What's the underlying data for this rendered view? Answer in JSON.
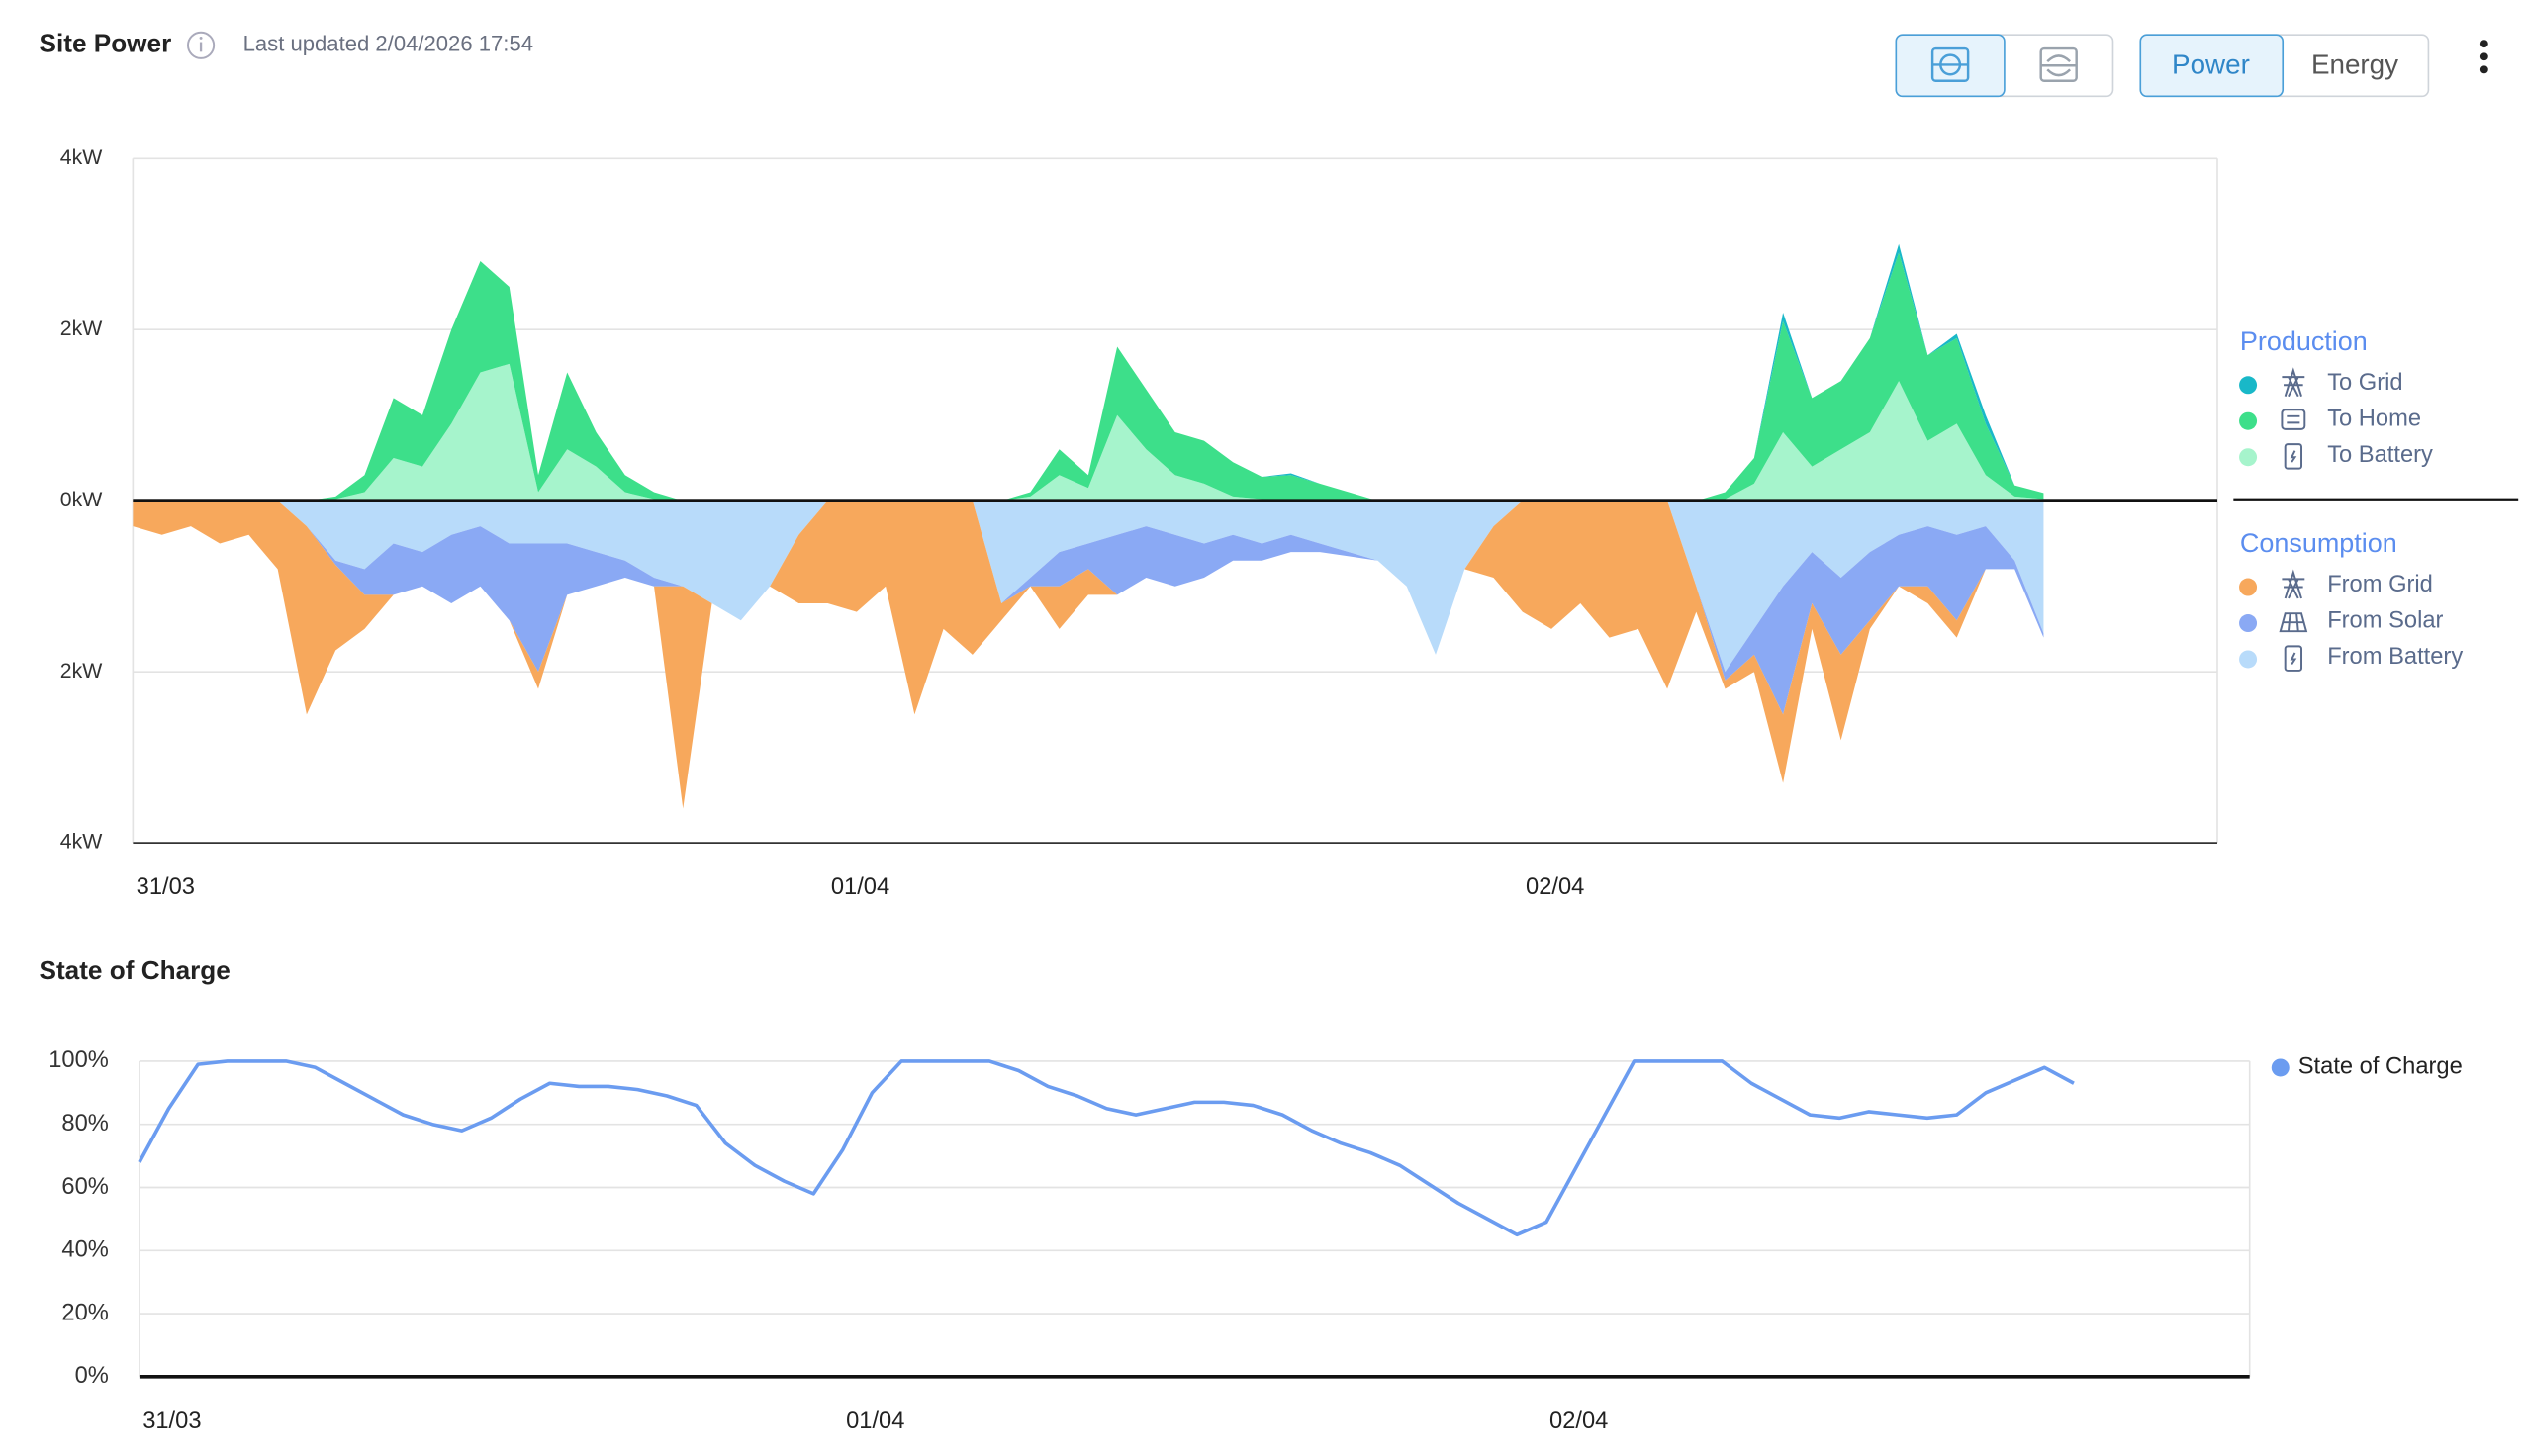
{
  "header": {
    "title": "Site Power",
    "last_updated": "Last updated 2/04/2026 17:54",
    "buttons": [
      "Power",
      "Energy"
    ]
  },
  "chart_data": [
    {
      "type": "area",
      "stacked": true,
      "categories": [
        "31/03",
        null,
        null,
        null,
        null,
        null,
        null,
        null,
        null,
        null,
        null,
        null,
        null,
        null,
        null,
        null,
        null,
        null,
        null,
        null,
        null,
        null,
        null,
        null,
        "01/04",
        null,
        null,
        null,
        null,
        null,
        null,
        null,
        null,
        null,
        null,
        null,
        null,
        null,
        null,
        null,
        null,
        null,
        null,
        null,
        null,
        null,
        null,
        null,
        "02/04",
        null,
        null,
        null,
        null,
        null,
        null,
        null,
        null,
        null,
        null,
        null,
        null,
        null,
        null,
        null,
        null,
        null,
        null,
        null,
        null,
        null,
        null,
        null
      ],
      "ylim": [
        -4,
        4
      ],
      "yticks": [
        {
          "value": 4,
          "label": "4kW"
        },
        {
          "value": 2,
          "label": "2kW"
        },
        {
          "value": 0,
          "label": "0kW"
        },
        {
          "value": -2,
          "label": "2kW"
        },
        {
          "value": -4,
          "label": "4kW"
        }
      ],
      "grid": true,
      "legend_position": "right",
      "legend_groups": [
        "Production",
        "Consumption"
      ],
      "series": [
        {
          "name": "To Grid",
          "color": "#19b8c8",
          "values": [
            0,
            0,
            0,
            0,
            0,
            0,
            0,
            0,
            0,
            0,
            0,
            0,
            0,
            0,
            0,
            0,
            0,
            0,
            0,
            0,
            0,
            0,
            0,
            0,
            0,
            0,
            0,
            0,
            0,
            0,
            0,
            0,
            0,
            0,
            0,
            0,
            0,
            0,
            0,
            0,
            0.02,
            0,
            0,
            0,
            0,
            0,
            0,
            0,
            0,
            0,
            0,
            0,
            0,
            0,
            0,
            0,
            0,
            0.1,
            0,
            0,
            0,
            0.1,
            0,
            0.05,
            0.1,
            0,
            0,
            null,
            null,
            null,
            null,
            null
          ]
        },
        {
          "name": "To Home",
          "color": "#3ddf8a",
          "values": [
            0,
            0,
            0,
            0,
            0,
            0,
            0,
            0.03,
            0.2,
            0.7,
            0.6,
            1.1,
            1.3,
            0.9,
            0.2,
            0.9,
            0.4,
            0.2,
            0.08,
            0,
            0,
            0,
            0,
            0,
            0,
            0,
            0,
            0,
            0,
            0,
            0,
            0.05,
            0.3,
            0.15,
            0.8,
            0.7,
            0.5,
            0.5,
            0.4,
            0.26,
            0.3,
            0.2,
            0.1,
            0,
            0,
            0,
            0,
            0,
            0,
            0,
            0,
            0,
            0,
            0,
            0,
            0.08,
            0.3,
            1.3,
            0.8,
            0.8,
            1.1,
            1.5,
            1.0,
            1.0,
            0.6,
            0.13,
            0.07,
            null,
            null,
            null,
            null,
            null
          ]
        },
        {
          "name": "To Battery",
          "color": "#a6f4cc",
          "values": [
            0,
            0,
            0,
            0,
            0,
            0,
            0,
            0.02,
            0.1,
            0.5,
            0.4,
            0.9,
            1.5,
            1.6,
            0.1,
            0.6,
            0.4,
            0.1,
            0.02,
            0,
            0,
            0,
            0,
            0,
            0,
            0,
            0,
            0,
            0,
            0,
            0,
            0.05,
            0.3,
            0.15,
            1.0,
            0.6,
            0.3,
            0.2,
            0.05,
            0.02,
            0,
            0,
            0,
            0,
            0,
            0,
            0,
            0,
            0,
            0,
            0,
            0,
            0,
            0,
            0,
            0.02,
            0.2,
            0.8,
            0.4,
            0.6,
            0.8,
            1.4,
            0.7,
            0.9,
            0.3,
            0.05,
            0.02,
            null,
            null,
            null,
            null,
            null
          ]
        },
        {
          "name": "From Grid",
          "color": "#f7a85c",
          "values": [
            -0.3,
            -0.4,
            -0.3,
            -0.5,
            -0.4,
            -0.8,
            -2.2,
            -1.0,
            -0.4,
            0,
            0,
            0,
            0,
            0,
            -0.2,
            0,
            0,
            0,
            0,
            -2.6,
            0,
            0,
            0,
            -0.8,
            -1.2,
            -1.3,
            -1.0,
            -2.5,
            -1.5,
            -1.8,
            -0.2,
            0,
            -0.5,
            -0.3,
            0,
            0,
            0,
            0,
            0,
            0,
            0,
            0,
            0,
            0,
            0,
            0,
            0,
            -0.6,
            -1.3,
            -1.5,
            -1.2,
            -1.6,
            -1.5,
            -2.2,
            -0.3,
            -0.1,
            -0.2,
            -0.8,
            -0.3,
            -1.0,
            -0.1,
            0,
            -0.2,
            -0.2,
            0,
            0,
            0,
            null,
            null,
            null,
            null,
            null
          ]
        },
        {
          "name": "From Solar",
          "color": "#8aa9f4",
          "values": [
            0,
            0,
            0,
            0,
            0,
            0,
            0,
            -0.05,
            -0.3,
            -0.6,
            -0.4,
            -0.8,
            -0.7,
            -0.9,
            -1.5,
            -0.6,
            -0.4,
            -0.2,
            -0.1,
            0,
            0,
            0,
            0,
            0,
            0,
            0,
            0,
            0,
            0,
            0,
            0,
            -0.1,
            -0.4,
            -0.3,
            -0.7,
            -0.6,
            -0.6,
            -0.4,
            -0.3,
            -0.2,
            -0.2,
            -0.1,
            -0.05,
            0,
            0,
            0,
            0,
            0,
            0,
            0,
            0,
            0,
            0,
            0,
            0,
            -0.1,
            -0.3,
            -1.5,
            -0.6,
            -0.9,
            -0.8,
            -0.6,
            -0.7,
            -1.0,
            -0.5,
            -0.1,
            -0.05,
            null,
            null,
            null,
            null,
            null
          ]
        },
        {
          "name": "From Battery",
          "color": "#b8dbfa",
          "values": [
            0,
            0,
            0,
            0,
            0,
            0,
            -0.3,
            -0.7,
            -0.8,
            -0.5,
            -0.6,
            -0.4,
            -0.3,
            -0.5,
            -0.5,
            -0.5,
            -0.6,
            -0.7,
            -0.9,
            -1.0,
            -1.2,
            -1.4,
            -1.0,
            -0.4,
            0,
            0,
            0,
            0,
            0,
            0,
            -1.2,
            -0.9,
            -0.6,
            -0.5,
            -0.4,
            -0.3,
            -0.4,
            -0.5,
            -0.4,
            -0.5,
            -0.4,
            -0.5,
            -0.6,
            -0.7,
            -1.0,
            -1.8,
            -0.8,
            -0.3,
            0,
            0,
            0,
            0,
            0,
            0,
            -1.0,
            -2.0,
            -1.5,
            -1.0,
            -0.6,
            -0.9,
            -0.6,
            -0.4,
            -0.3,
            -0.4,
            -0.3,
            -0.7,
            -1.55,
            null,
            null,
            null,
            null,
            null
          ]
        }
      ]
    },
    {
      "type": "line",
      "title": "State of Charge",
      "categories": [
        "31/03",
        null,
        null,
        null,
        null,
        null,
        null,
        null,
        null,
        null,
        null,
        null,
        null,
        null,
        null,
        null,
        null,
        null,
        null,
        null,
        null,
        null,
        null,
        null,
        "01/04",
        null,
        null,
        null,
        null,
        null,
        null,
        null,
        null,
        null,
        null,
        null,
        null,
        null,
        null,
        null,
        null,
        null,
        null,
        null,
        null,
        null,
        null,
        null,
        "02/04",
        null,
        null,
        null,
        null,
        null,
        null,
        null,
        null,
        null,
        null,
        null,
        null,
        null,
        null,
        null,
        null,
        null,
        null,
        null,
        null,
        null,
        null,
        null
      ],
      "ylim": [
        0,
        100
      ],
      "yticks": [
        {
          "value": 100,
          "label": "100%"
        },
        {
          "value": 80,
          "label": "80%"
        },
        {
          "value": 60,
          "label": "60%"
        },
        {
          "value": 40,
          "label": "40%"
        },
        {
          "value": 20,
          "label": "20%"
        },
        {
          "value": 0,
          "label": "0%"
        }
      ],
      "grid": true,
      "legend_position": "right",
      "series": [
        {
          "name": "State of Charge",
          "color": "#6b9cf0",
          "values": [
            68,
            85,
            99,
            100,
            100,
            100,
            98,
            93,
            88,
            83,
            80,
            78,
            82,
            88,
            93,
            92,
            92,
            91,
            89,
            86,
            74,
            67,
            62,
            58,
            72,
            90,
            100,
            100,
            100,
            100,
            97,
            92,
            89,
            85,
            83,
            85,
            87,
            87,
            86,
            83,
            78,
            74,
            71,
            67,
            61,
            55,
            50,
            45,
            49,
            66,
            83,
            100,
            100,
            100,
            100,
            93,
            88,
            83,
            82,
            84,
            83,
            82,
            83,
            90,
            94,
            98,
            93,
            null,
            null,
            null,
            null,
            null
          ]
        }
      ]
    }
  ]
}
